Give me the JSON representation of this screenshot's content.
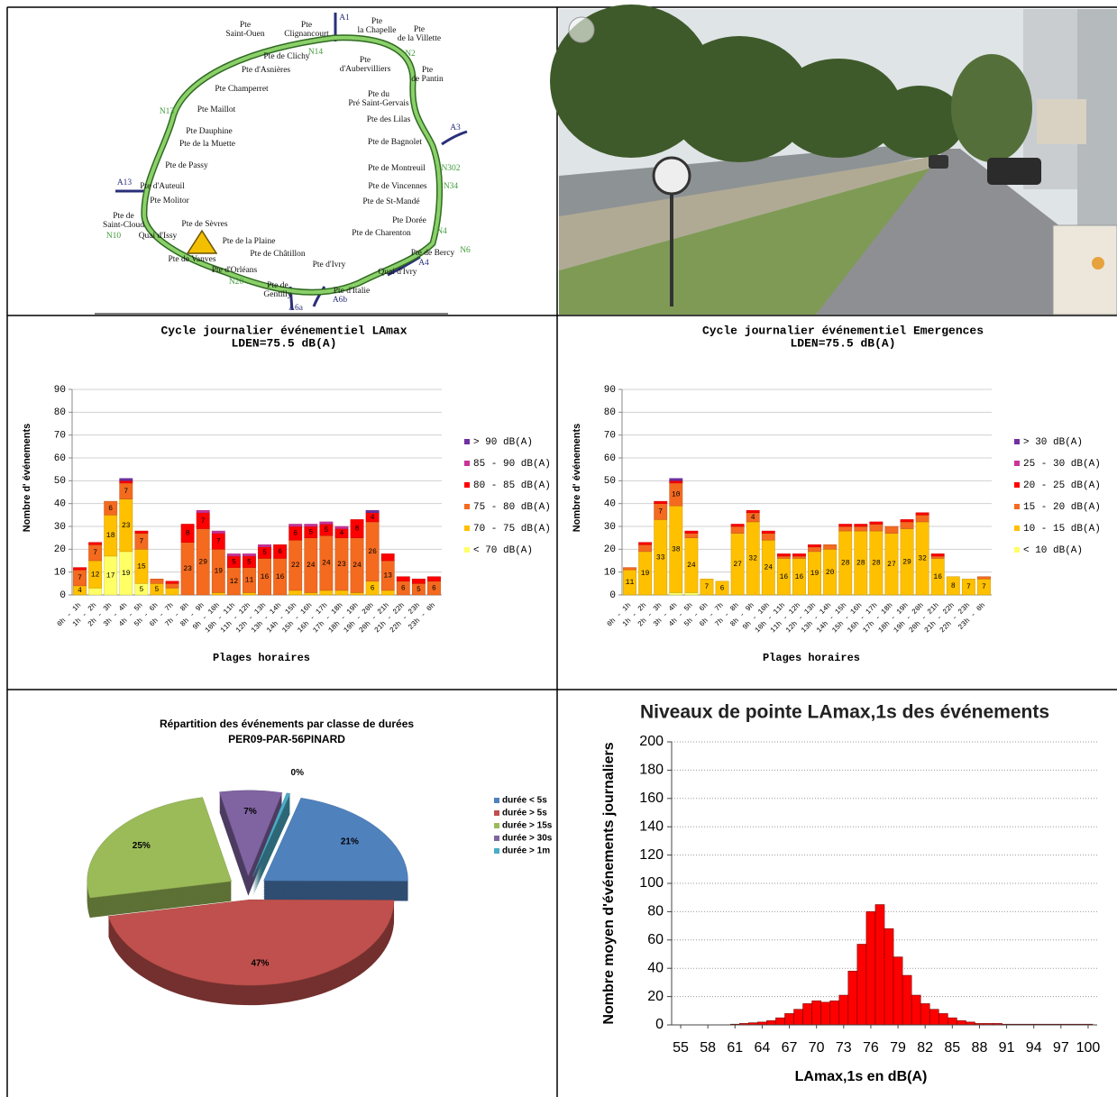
{
  "map": {
    "labels": [
      [
        "Pte",
        "Saint-Ouen"
      ],
      [
        "Pte",
        "Clignancourt"
      ],
      [
        "A1"
      ],
      [
        "Pte",
        "la Chapelle"
      ],
      [
        "Pte",
        "de la Villette"
      ],
      [
        "Pte de Clichy"
      ],
      [
        "N14"
      ],
      [
        "N2"
      ],
      [
        "Pte d'Asnières"
      ],
      [
        "Pte",
        "d'Aubervilliers"
      ],
      [
        "Pte",
        "de Pantin"
      ],
      [
        "Pte Champerret"
      ],
      [
        "Pte du",
        "Pré Saint-Gervais"
      ],
      [
        "N13"
      ],
      [
        "Pte Maillot"
      ],
      [
        "Pte des Lilas"
      ],
      [
        "A3"
      ],
      [
        "Pte Dauphine"
      ],
      [
        "Pte de la Muette"
      ],
      [
        "Pte de Bagnolet"
      ],
      [
        "Pte de Passy"
      ],
      [
        "Pte de Montreuil"
      ],
      [
        "N302"
      ],
      [
        "A13"
      ],
      [
        "Pte d'Auteuil"
      ],
      [
        "Pte de Vincennes"
      ],
      [
        "N34"
      ],
      [
        "Pte Molitor"
      ],
      [
        "Pte de St-Mandé"
      ],
      [
        "Pte de",
        "Saint-Cloud"
      ],
      [
        "Pte de Sèvres"
      ],
      [
        "Pte Dorée"
      ],
      [
        "Pte de Charenton"
      ],
      [
        "N10"
      ],
      [
        "Quai d'Issy"
      ],
      [
        "N4"
      ],
      [
        "Pte de la Plaine"
      ],
      [
        "Pte de Bercy"
      ],
      [
        "N6"
      ],
      [
        "Pte de Vanves"
      ],
      [
        "Pte de Châtillon"
      ],
      [
        "Pte d'Ivry"
      ],
      [
        "A4"
      ],
      [
        "Pte d'Orléans"
      ],
      [
        "Quai d'Ivry"
      ],
      [
        "N20"
      ],
      [
        "Pte de",
        "Gentilly"
      ],
      [
        "Pte d'Italie"
      ],
      [
        "A6a"
      ],
      [
        "A6b"
      ]
    ]
  },
  "chart_data": [
    {
      "type": "stacked_bar",
      "title": "Cycle journalier événementiel LAmax",
      "subtitle": "LDEN=75.5 dB(A)",
      "y_label": "Nombre d' événements",
      "x_label": "Plages horaires",
      "categories": [
        "0h - 1h",
        "1h - 2h",
        "2h - 3h",
        "3h - 4h",
        "4h - 5h",
        "5h - 6h",
        "6h - 7h",
        "7h - 8h",
        "8h - 9h",
        "9h - 10h",
        "10h - 11h",
        "11h - 12h",
        "12h - 13h",
        "13h - 14h",
        "14h - 15h",
        "15h - 16h",
        "16h - 17h",
        "17h - 18h",
        "18h - 19h",
        "19h - 20h",
        "20h - 21h",
        "21h - 22h",
        "22h - 23h",
        "23h - 0h"
      ],
      "series": [
        {
          "name": "< 70 dB(A)",
          "color": "#ffff66",
          "values": [
            0,
            3,
            17,
            19,
            5,
            0,
            0,
            0,
            0,
            0,
            0,
            0,
            0,
            0,
            0,
            0,
            0,
            0,
            0,
            0,
            0,
            0,
            0,
            0
          ]
        },
        {
          "name": "70 - 75 dB(A)",
          "color": "#ffc000",
          "values": [
            4,
            12,
            18,
            23,
            15,
            5,
            3,
            0,
            0,
            1,
            0,
            1,
            0,
            0,
            2,
            1,
            2,
            2,
            1,
            6,
            2,
            0,
            0,
            0
          ]
        },
        {
          "name": "75 - 80 dB(A)",
          "color": "#f46a1f",
          "values": [
            7,
            7,
            6,
            7,
            7,
            2,
            2,
            23,
            29,
            19,
            12,
            11,
            16,
            16,
            22,
            24,
            24,
            23,
            24,
            26,
            13,
            6,
            5,
            6
          ]
        },
        {
          "name": "80 - 85 dB(A)",
          "color": "#ff0000",
          "values": [
            1,
            1,
            0,
            1,
            1,
            0,
            1,
            8,
            7,
            7,
            5,
            5,
            5,
            6,
            6,
            5,
            5,
            4,
            8,
            4,
            3,
            2,
            2,
            2
          ]
        },
        {
          "name": "85 - 90 dB(A)",
          "color": "#cc3399",
          "values": [
            0,
            0,
            0,
            0,
            0,
            0,
            0,
            0,
            1,
            1,
            1,
            1,
            1,
            0,
            1,
            1,
            1,
            1,
            0,
            0,
            0,
            0,
            0,
            0
          ]
        },
        {
          "name": "> 90 dB(A)",
          "color": "#7030a0",
          "values": [
            0,
            0,
            0,
            1,
            0,
            0,
            0,
            0,
            0,
            0,
            0,
            0,
            0,
            0,
            0,
            0,
            0,
            0,
            0,
            1,
            0,
            0,
            0,
            0
          ]
        }
      ],
      "ylim": [
        0,
        90
      ],
      "yticks": [
        0,
        10,
        20,
        30,
        40,
        50,
        60,
        70,
        80,
        90
      ],
      "grid": true
    },
    {
      "type": "stacked_bar",
      "title": "Cycle journalier événementiel Emergences",
      "subtitle": "LDEN=75.5 dB(A)",
      "y_label": "Nombre d' événements",
      "x_label": "Plages horaires",
      "categories": [
        "0h - 1h",
        "1h - 2h",
        "2h - 3h",
        "3h - 4h",
        "4h - 5h",
        "5h - 6h",
        "6h - 7h",
        "7h - 8h",
        "8h - 9h",
        "9h - 10h",
        "10h - 11h",
        "11h - 12h",
        "12h - 13h",
        "13h - 14h",
        "14h - 15h",
        "15h - 16h",
        "16h - 17h",
        "17h - 18h",
        "18h - 19h",
        "19h - 20h",
        "20h - 21h",
        "21h - 22h",
        "22h - 23h",
        "23h - 0h"
      ],
      "series": [
        {
          "name": "< 10 dB(A)",
          "color": "#ffff66",
          "values": [
            0,
            0,
            0,
            1,
            1,
            0,
            0,
            0,
            0,
            0,
            0,
            0,
            0,
            0,
            0,
            0,
            0,
            0,
            0,
            0,
            0,
            0,
            0,
            0
          ]
        },
        {
          "name": "10 - 15 dB(A)",
          "color": "#ffc000",
          "values": [
            11,
            19,
            33,
            38,
            24,
            7,
            6,
            27,
            32,
            24,
            16,
            16,
            19,
            20,
            28,
            28,
            28,
            27,
            29,
            32,
            16,
            8,
            7,
            7
          ]
        },
        {
          "name": "15 - 20 dB(A)",
          "color": "#f46a1f",
          "values": [
            1,
            3,
            7,
            10,
            2,
            0,
            0,
            3,
            4,
            3,
            1,
            1,
            2,
            2,
            2,
            2,
            3,
            3,
            3,
            3,
            1,
            0,
            0,
            1
          ]
        },
        {
          "name": "20 - 25 dB(A)",
          "color": "#ff0000",
          "values": [
            0,
            1,
            1,
            1,
            1,
            0,
            0,
            1,
            1,
            1,
            1,
            1,
            1,
            0,
            1,
            1,
            1,
            0,
            1,
            1,
            1,
            0,
            0,
            0
          ]
        },
        {
          "name": "25 - 30 dB(A)",
          "color": "#cc3399",
          "values": [
            0,
            0,
            0,
            0,
            0,
            0,
            0,
            0,
            0,
            0,
            0,
            0,
            0,
            0,
            0,
            0,
            0,
            0,
            0,
            0,
            0,
            0,
            0,
            0
          ]
        },
        {
          "name": "> 30 dB(A)",
          "color": "#7030a0",
          "values": [
            0,
            0,
            0,
            1,
            0,
            0,
            0,
            0,
            0,
            0,
            0,
            0,
            0,
            0,
            0,
            0,
            0,
            0,
            0,
            0,
            0,
            0,
            0,
            0
          ]
        }
      ],
      "ylim": [
        0,
        90
      ],
      "yticks": [
        0,
        10,
        20,
        30,
        40,
        50,
        60,
        70,
        80,
        90
      ],
      "grid": true
    },
    {
      "type": "pie",
      "title": "Répartition des événements par classe de durées",
      "subtitle": "PER09-PAR-56PINARD",
      "categories": [
        "durée < 5s",
        "durée > 5s",
        "durée > 15s",
        "durée > 30s",
        "durée > 1m"
      ],
      "values": [
        21,
        47,
        25,
        7,
        0.4
      ],
      "value_labels": [
        "21%",
        "47%",
        "25%",
        "7%",
        "0%"
      ],
      "colors": [
        "#4f81bd",
        "#c0504d",
        "#9bbb59",
        "#8064a2",
        "#4bacc6"
      ]
    },
    {
      "type": "histogram",
      "title": "Niveaux de pointe LAmax,1s des événements",
      "y_label": "Nombre moyen d'événements journaliers",
      "x_label": "LAmax,1s en dB(A)",
      "bins": [
        54.5,
        55.5,
        56.5,
        57.5,
        58.5,
        59.5,
        60.5,
        61.5,
        62.5,
        63.5,
        64.5,
        65.5,
        66.5,
        67.5,
        68.5,
        69.5,
        70.5,
        71.5,
        72.5,
        73.5,
        74.5,
        75.5,
        76.5,
        77.5,
        78.5,
        79.5,
        80.5,
        81.5,
        82.5,
        83.5,
        84.5,
        85.5,
        86.5,
        87.5,
        88.5,
        89.5,
        90.5,
        91.5,
        92.5,
        93.5,
        94.5,
        95.5,
        96.5,
        97.5,
        98.5,
        99.5,
        100.5
      ],
      "values": [
        0,
        0,
        0,
        0,
        0,
        0,
        0.5,
        1,
        1.5,
        2,
        3,
        5,
        8,
        11,
        15,
        17,
        16,
        17,
        21,
        38,
        57,
        80,
        85,
        68,
        48,
        35,
        21,
        15,
        11,
        8,
        5,
        3,
        2,
        1,
        1,
        1,
        0.5,
        0.5,
        0.5,
        0.5,
        0.5,
        0.5,
        0.5,
        0.5,
        0.5,
        0.5
      ],
      "color": "#ff0000",
      "xlim": [
        54,
        101
      ],
      "xticks": [
        55,
        58,
        61,
        64,
        67,
        70,
        73,
        76,
        79,
        82,
        85,
        88,
        91,
        94,
        97,
        100
      ],
      "ylim": [
        0,
        200
      ],
      "yticks": [
        0,
        20,
        40,
        60,
        80,
        100,
        120,
        140,
        160,
        180,
        200
      ],
      "grid": true
    }
  ]
}
